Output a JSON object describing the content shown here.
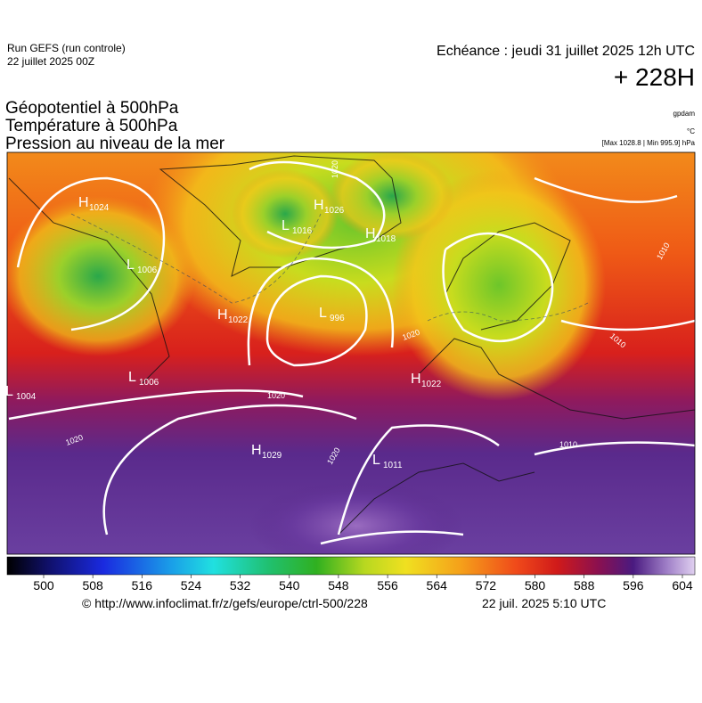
{
  "header": {
    "run": "Run GEFS (run controle)",
    "run_date": "22 juillet 2025 00Z",
    "valid": "Echéance : jeudi 31 juillet 2025 12h UTC",
    "lead": "+ 228H"
  },
  "layers": [
    "Géopotentiel à 500hPa",
    "Température à 500hPa",
    "Pression au niveau de la mer"
  ],
  "units": {
    "geopotential": "gpdam",
    "temperature": "°C",
    "pressure_range": "[Max 1028.8 | Min 995.9] hPa"
  },
  "map": {
    "centers": [
      {
        "type": "H",
        "value": "1024"
      },
      {
        "type": "L",
        "value": "1006"
      },
      {
        "type": "H",
        "value": "1022"
      },
      {
        "type": "L",
        "value": "1006"
      },
      {
        "type": "L",
        "value": "1004"
      },
      {
        "type": "L",
        "value": "1016"
      },
      {
        "type": "H",
        "value": "1026"
      },
      {
        "type": "H",
        "value": "1018"
      },
      {
        "type": "L",
        "value": "996"
      },
      {
        "type": "H",
        "value": "1022"
      },
      {
        "type": "H",
        "value": "1029"
      },
      {
        "type": "L",
        "value": "1011"
      }
    ],
    "isobar_labels": [
      "1020",
      "1020",
      "1020",
      "1010",
      "1010",
      "1010",
      "1020",
      "1020"
    ]
  },
  "colorbar": {
    "ticks": [
      500,
      508,
      516,
      524,
      532,
      540,
      548,
      556,
      564,
      572,
      580,
      588,
      596,
      604
    ]
  },
  "footer": {
    "source": "© http://www.infoclimat.fr/z/gefs/europe/ctrl-500/228",
    "generated": "22 juil. 2025  5:10 UTC"
  }
}
